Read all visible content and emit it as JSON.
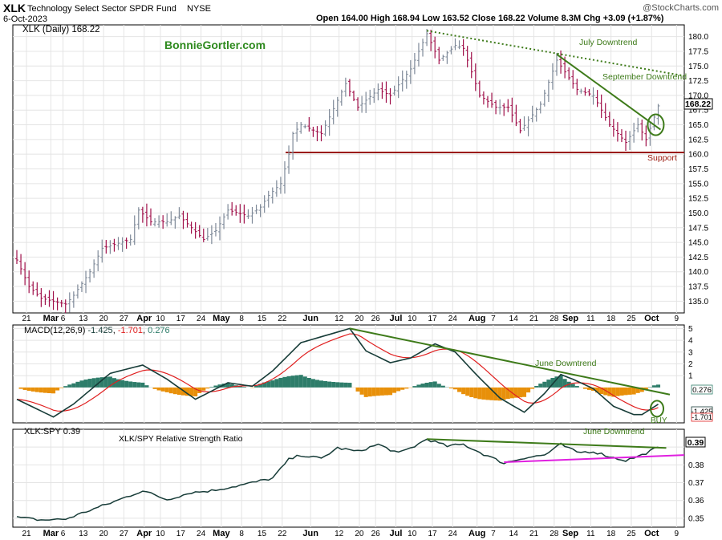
{
  "header": {
    "symbol": "XLK",
    "name": "Technology Select Sector SPDR Fund",
    "exchange": "NYSE",
    "date": "6-Oct-2023",
    "watermark": "@StockCharts.com",
    "open_label": "Open",
    "open": "164.00",
    "high_label": "High",
    "high": "168.94",
    "low_label": "Low",
    "low": "163.52",
    "close_label": "Close",
    "close": "168.22",
    "volume_label": "Volume",
    "volume": "8.3M",
    "chg_label": "Chg",
    "chg": "+3.09 (+1.87%)"
  },
  "colors": {
    "up_bar": "#7f8a99",
    "down_bar": "#a0104a",
    "trend": "#3e7b1a",
    "support": "#9b1a0e",
    "macd_line": "#173c38",
    "signal_line": "#e02020",
    "hist_pos": "#2e7d6a",
    "hist_neg": "#e8900a",
    "rs_support": "#e020e0",
    "brand": "#2e8a1e",
    "grid": "#e4e4e4"
  },
  "chart_data": [
    {
      "type": "bar",
      "panel": "price",
      "title": "XLK (Daily) 168.22",
      "brand": "BonnieGortler.com",
      "x_labels": [
        "21",
        "Mar",
        "6",
        "13",
        "20",
        "27",
        "Apr",
        "10",
        "17",
        "24",
        "May",
        "8",
        "15",
        "22",
        "Jun",
        "12",
        "20",
        "26",
        "Jul",
        "10",
        "17",
        "24",
        "Aug",
        "7",
        "14",
        "21",
        "28",
        "Sep",
        "11",
        "18",
        "25",
        "Oct",
        "9"
      ],
      "ylim": [
        133,
        182
      ],
      "y_ticks": [
        "135.0",
        "137.5",
        "140.0",
        "142.5",
        "145.0",
        "147.5",
        "150.0",
        "152.5",
        "155.0",
        "157.5",
        "160.0",
        "162.5",
        "165.0",
        "167.5",
        "170.0",
        "172.5",
        "175.0",
        "177.5",
        "180.0"
      ],
      "last_value": "168.22",
      "anchors": [
        [
          "2023-02-21",
          142
        ],
        [
          "2023-02-24",
          137.5
        ],
        [
          "2023-03-01",
          135.5
        ],
        [
          "2023-03-09",
          134.5
        ],
        [
          "2023-03-13",
          136
        ],
        [
          "2023-03-17",
          140
        ],
        [
          "2023-03-22",
          144
        ],
        [
          "2023-03-31",
          145.5
        ],
        [
          "2023-04-04",
          150.5
        ],
        [
          "2023-04-10",
          148.5
        ],
        [
          "2023-04-14",
          148.5
        ],
        [
          "2023-04-19",
          149.5
        ],
        [
          "2023-04-27",
          145.5
        ],
        [
          "2023-05-02",
          147
        ],
        [
          "2023-05-05",
          150.5
        ],
        [
          "2023-05-12",
          149.5
        ],
        [
          "2023-05-17",
          151
        ],
        [
          "2023-05-19",
          153
        ],
        [
          "2023-05-24",
          155
        ],
        [
          "2023-05-26",
          160
        ],
        [
          "2023-05-30",
          163.5
        ],
        [
          "2023-06-01",
          165
        ],
        [
          "2023-06-08",
          163.5
        ],
        [
          "2023-06-16",
          172
        ],
        [
          "2023-06-22",
          168
        ],
        [
          "2023-06-29",
          171
        ],
        [
          "2023-07-05",
          170
        ],
        [
          "2023-07-12",
          174.5
        ],
        [
          "2023-07-18",
          180.5
        ],
        [
          "2023-07-21",
          176
        ],
        [
          "2023-07-27",
          178.5
        ],
        [
          "2023-07-31",
          178
        ],
        [
          "2023-08-04",
          170
        ],
        [
          "2023-08-10",
          168
        ],
        [
          "2023-08-15",
          168
        ],
        [
          "2023-08-18",
          164
        ],
        [
          "2023-08-25",
          168.5
        ],
        [
          "2023-08-31",
          176
        ],
        [
          "2023-09-05",
          174
        ],
        [
          "2023-09-08",
          171
        ],
        [
          "2023-09-14",
          170
        ],
        [
          "2023-09-20",
          165
        ],
        [
          "2023-09-26",
          162
        ],
        [
          "2023-09-29",
          165
        ],
        [
          "2023-10-03",
          162.5
        ],
        [
          "2023-10-06",
          168.22
        ]
      ],
      "annotations": [
        {
          "text": "July Downtrend",
          "type": "dotted-trendline",
          "from": [
            "2023-07-18",
            181
          ],
          "to": [
            "2023-10-13",
            173.5
          ]
        },
        {
          "text": "September Downtrend",
          "type": "trendline",
          "from": [
            "2023-08-31",
            177
          ],
          "to": [
            "2023-10-05",
            165
          ]
        },
        {
          "text": "Support",
          "type": "horizontal-line",
          "y": 160.3
        }
      ]
    },
    {
      "type": "line",
      "panel": "macd",
      "title": "MACD(12,26,9)",
      "values": [
        "-1.425",
        "-1.701",
        "0.276"
      ],
      "series": [
        {
          "name": "MACD"
        },
        {
          "name": "Signal"
        },
        {
          "name": "Histogram"
        }
      ],
      "ylim": [
        -3,
        5.3
      ],
      "y_ticks": [
        "5",
        "4",
        "3",
        "2",
        "1"
      ],
      "macd_anchors": [
        [
          "2023-02-21",
          -1.0
        ],
        [
          "2023-03-06",
          -2.5
        ],
        [
          "2023-03-13",
          -1.4
        ],
        [
          "2023-03-24",
          1.2
        ],
        [
          "2023-04-05",
          1.9
        ],
        [
          "2023-04-14",
          0.7
        ],
        [
          "2023-04-25",
          -1.0
        ],
        [
          "2023-05-05",
          0.4
        ],
        [
          "2023-05-15",
          0.1
        ],
        [
          "2023-05-22",
          1.4
        ],
        [
          "2023-06-01",
          3.8
        ],
        [
          "2023-06-13",
          4.6
        ],
        [
          "2023-06-20",
          5.0
        ],
        [
          "2023-06-26",
          3.1
        ],
        [
          "2023-07-05",
          2.1
        ],
        [
          "2023-07-12",
          2.5
        ],
        [
          "2023-07-20",
          3.7
        ],
        [
          "2023-07-27",
          3.0
        ],
        [
          "2023-08-04",
          0.8
        ],
        [
          "2023-08-11",
          -0.9
        ],
        [
          "2023-08-21",
          -2.1
        ],
        [
          "2023-08-28",
          -0.5
        ],
        [
          "2023-09-01",
          1.1
        ],
        [
          "2023-09-07",
          0.7
        ],
        [
          "2023-09-14",
          -0.1
        ],
        [
          "2023-09-21",
          -1.6
        ],
        [
          "2023-09-28",
          -2.3
        ],
        [
          "2023-10-02",
          -2.3
        ],
        [
          "2023-10-06",
          -1.425
        ]
      ],
      "annotations": [
        {
          "text": "June Downtrend",
          "type": "trendline",
          "from": [
            "2023-06-20",
            5.0
          ],
          "to": [
            "2023-10-10",
            -0.6
          ]
        },
        {
          "text": "BUY",
          "type": "circle"
        }
      ]
    },
    {
      "type": "line",
      "panel": "relative-strength",
      "title": "XLK:SPY 0.39",
      "subtitle": "XLK/SPY Relative Strength Ratio",
      "last_value": "0.39",
      "ylim": [
        0.345,
        0.4
      ],
      "y_ticks": [
        "0.39",
        "0.38",
        "0.37",
        "0.36",
        "0.35"
      ],
      "anchors": [
        [
          "2023-02-21",
          0.3505
        ],
        [
          "2023-03-01",
          0.349
        ],
        [
          "2023-03-09",
          0.3495
        ],
        [
          "2023-03-17",
          0.3545
        ],
        [
          "2023-03-24",
          0.3585
        ],
        [
          "2023-04-05",
          0.3655
        ],
        [
          "2023-04-14",
          0.3605
        ],
        [
          "2023-04-24",
          0.3645
        ],
        [
          "2023-05-01",
          0.3655
        ],
        [
          "2023-05-10",
          0.3685
        ],
        [
          "2023-05-22",
          0.3725
        ],
        [
          "2023-05-26",
          0.383
        ],
        [
          "2023-06-01",
          0.3855
        ],
        [
          "2023-06-08",
          0.3835
        ],
        [
          "2023-06-14",
          0.3895
        ],
        [
          "2023-06-22",
          0.3875
        ],
        [
          "2023-06-29",
          0.3915
        ],
        [
          "2023-07-07",
          0.3865
        ],
        [
          "2023-07-13",
          0.3905
        ],
        [
          "2023-07-18",
          0.3945
        ],
        [
          "2023-07-25",
          0.3905
        ],
        [
          "2023-07-31",
          0.3915
        ],
        [
          "2023-08-07",
          0.386
        ],
        [
          "2023-08-14",
          0.381
        ],
        [
          "2023-08-21",
          0.384
        ],
        [
          "2023-08-28",
          0.3855
        ],
        [
          "2023-09-01",
          0.3915
        ],
        [
          "2023-09-08",
          0.387
        ],
        [
          "2023-09-14",
          0.3875
        ],
        [
          "2023-09-21",
          0.384
        ],
        [
          "2023-09-26",
          0.3825
        ],
        [
          "2023-10-02",
          0.3855
        ],
        [
          "2023-10-06",
          0.39
        ]
      ],
      "annotations": [
        {
          "text": "June Downtrend",
          "type": "trendline",
          "from": [
            "2023-07-18",
            0.3945
          ],
          "to": [
            "2023-10-06",
            0.3895
          ]
        },
        {
          "text": "",
          "type": "trendline-magenta",
          "from": [
            "2023-08-14",
            0.3815
          ],
          "to": [
            "2023-10-13",
            0.3855
          ]
        }
      ]
    }
  ]
}
